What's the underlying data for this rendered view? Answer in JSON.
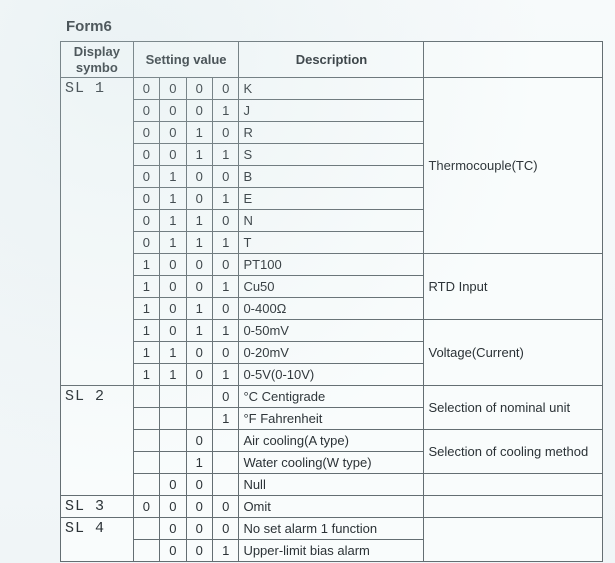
{
  "title": "Form6",
  "headers": {
    "symbol": "Display\nsymbo",
    "setting": "Setting\nvalue",
    "desc": "Description",
    "cat": ""
  },
  "groups": [
    {
      "symbol": "SL 1",
      "rows": [
        {
          "bits": [
            "0",
            "0",
            "0",
            "0"
          ],
          "desc": "K"
        },
        {
          "bits": [
            "0",
            "0",
            "0",
            "1"
          ],
          "desc": "J"
        },
        {
          "bits": [
            "0",
            "0",
            "1",
            "0"
          ],
          "desc": "R"
        },
        {
          "bits": [
            "0",
            "0",
            "1",
            "1"
          ],
          "desc": "S"
        },
        {
          "bits": [
            "0",
            "1",
            "0",
            "0"
          ],
          "desc": "B"
        },
        {
          "bits": [
            "0",
            "1",
            "0",
            "1"
          ],
          "desc": "E"
        },
        {
          "bits": [
            "0",
            "1",
            "1",
            "0"
          ],
          "desc": "N"
        },
        {
          "bits": [
            "0",
            "1",
            "1",
            "1"
          ],
          "desc": "T"
        },
        {
          "bits": [
            "1",
            "0",
            "0",
            "0"
          ],
          "desc": "PT100"
        },
        {
          "bits": [
            "1",
            "0",
            "0",
            "1"
          ],
          "desc": "Cu50"
        },
        {
          "bits": [
            "1",
            "0",
            "1",
            "0"
          ],
          "desc": "0-400Ω"
        },
        {
          "bits": [
            "1",
            "0",
            "1",
            "1"
          ],
          "desc": "0-50mV"
        },
        {
          "bits": [
            "1",
            "1",
            "0",
            "0"
          ],
          "desc": "0-20mV"
        },
        {
          "bits": [
            "1",
            "1",
            "0",
            "1"
          ],
          "desc": "0-5V(0-10V)"
        }
      ],
      "cats": [
        {
          "label": "Thermocouple(TC)",
          "span": 8
        },
        {
          "label": "RTD Input",
          "span": 3
        },
        {
          "label": "Voltage(Current)",
          "span": 3
        }
      ]
    },
    {
      "symbol": "SL 2",
      "rows": [
        {
          "bits": [
            "",
            "",
            "",
            "0"
          ],
          "desc": "°C   Centigrade"
        },
        {
          "bits": [
            "",
            "",
            "",
            "1"
          ],
          "desc": "°F   Fahrenheit"
        },
        {
          "bits": [
            "",
            "",
            "0",
            ""
          ],
          "desc": "Air cooling(A type)"
        },
        {
          "bits": [
            "",
            "",
            "1",
            ""
          ],
          "desc": "Water cooling(W type)"
        },
        {
          "bits": [
            "",
            "0",
            "0",
            ""
          ],
          "desc": "Null"
        }
      ],
      "cats": [
        {
          "label": "Selection of nominal unit",
          "span": 2
        },
        {
          "label": "Selection of cooling method",
          "span": 2
        },
        {
          "label": "",
          "span": 1
        }
      ]
    },
    {
      "symbol": "SL 3",
      "rows": [
        {
          "bits": [
            "0",
            "0",
            "0",
            "0"
          ],
          "desc": "Omit"
        }
      ],
      "cats": [
        {
          "label": "",
          "span": 1
        }
      ]
    },
    {
      "symbol": "SL 4",
      "rows": [
        {
          "bits": [
            "",
            "0",
            "0",
            "0"
          ],
          "desc": "No set alarm 1 function"
        },
        {
          "bits": [
            "",
            "0",
            "0",
            "1"
          ],
          "desc": "Upper-limit bias alarm"
        }
      ],
      "cats": [
        {
          "label": "",
          "span": 2
        }
      ]
    }
  ]
}
